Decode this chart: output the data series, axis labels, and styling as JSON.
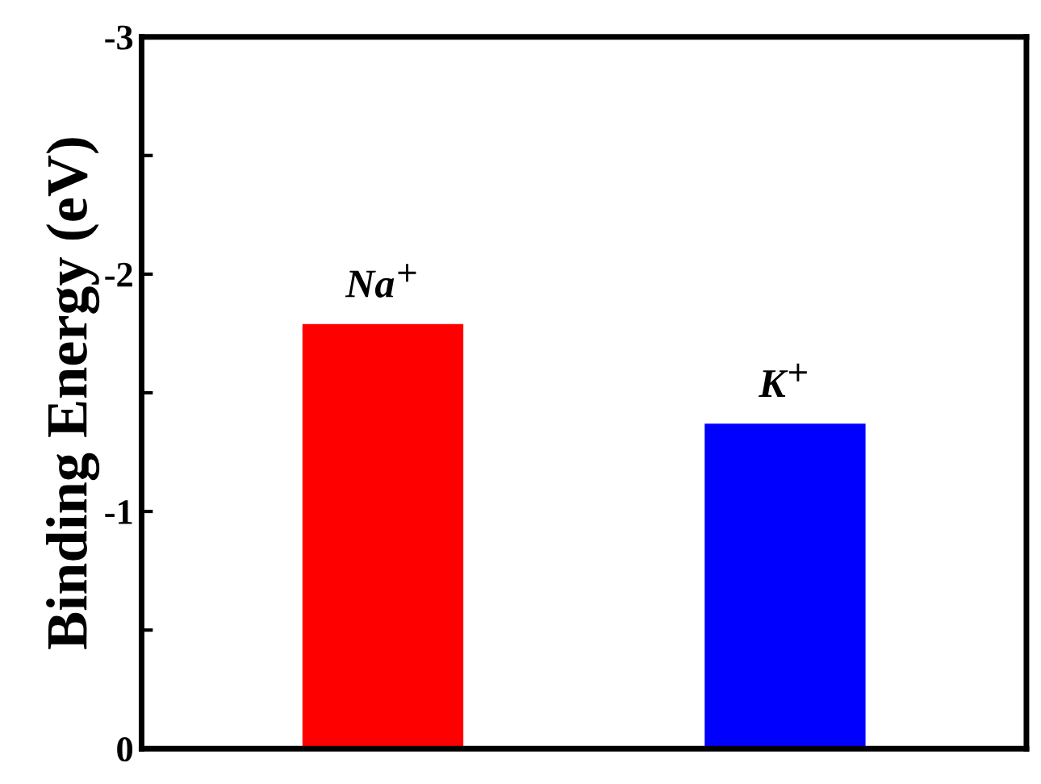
{
  "chart_data": {
    "type": "bar",
    "ylabel": "Binding Energy (eV)",
    "categories": [
      "Na$^{+}$",
      "K$^{+}$"
    ],
    "values": [
      -1.79,
      -1.37
    ],
    "colors": [
      "#ff0000",
      "#0000ff"
    ],
    "ylim": [
      0,
      -3
    ],
    "yticks": [
      0,
      {
        "value": -0.5,
        "label": null
      },
      -1,
      {
        "value": -1.5,
        "label": null
      },
      -2,
      {
        "value": -2.5,
        "label": null
      },
      -3
    ],
    "grid": false,
    "legend": false
  }
}
